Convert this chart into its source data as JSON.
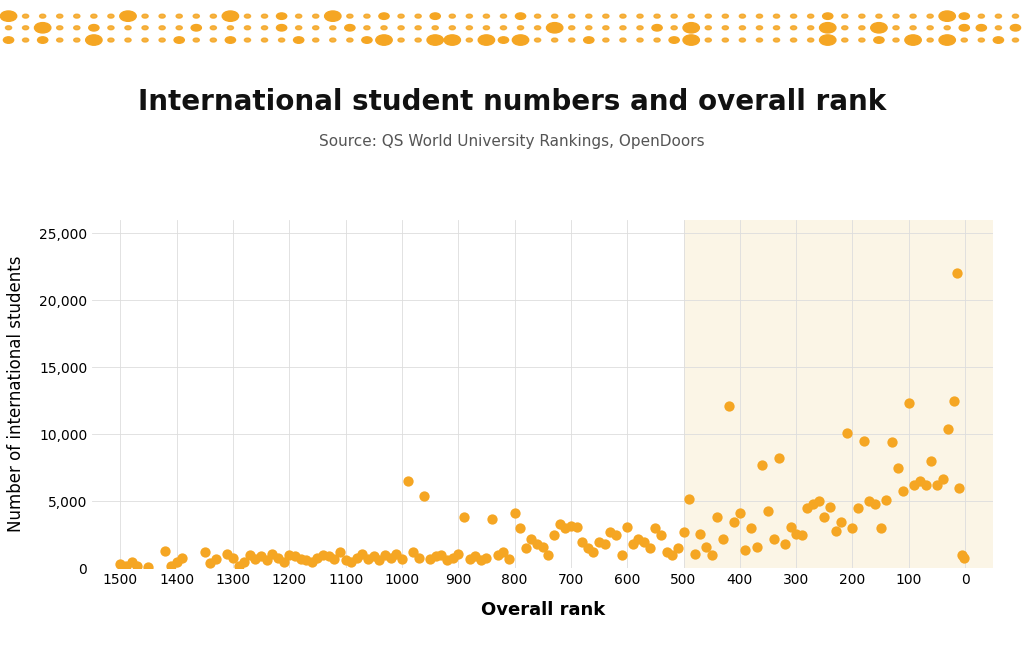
{
  "title": "International student numbers and overall rank",
  "subtitle": "Source: QS World University Rankings, OpenDoors",
  "xlabel": "Overall rank",
  "ylabel": "Number of international students",
  "dot_color": "#F5A623",
  "highlight_bg": "#FBF5E6",
  "highlight_x_start": 0,
  "highlight_x_end": 500,
  "xlim": [
    1550,
    -50
  ],
  "ylim": [
    0,
    26000
  ],
  "yticks": [
    0,
    5000,
    10000,
    15000,
    20000,
    25000
  ],
  "xticks": [
    1500,
    1400,
    1300,
    1200,
    1100,
    1000,
    900,
    800,
    700,
    600,
    500,
    400,
    300,
    200,
    100,
    0
  ],
  "scatter_data": [
    [
      1500,
      300
    ],
    [
      1490,
      150
    ],
    [
      1480,
      500
    ],
    [
      1470,
      200
    ],
    [
      1450,
      100
    ],
    [
      1420,
      1300
    ],
    [
      1410,
      200
    ],
    [
      1400,
      500
    ],
    [
      1390,
      800
    ],
    [
      1350,
      1200
    ],
    [
      1340,
      400
    ],
    [
      1330,
      700
    ],
    [
      1310,
      1100
    ],
    [
      1300,
      800
    ],
    [
      1290,
      200
    ],
    [
      1280,
      500
    ],
    [
      1270,
      1000
    ],
    [
      1260,
      700
    ],
    [
      1250,
      900
    ],
    [
      1240,
      600
    ],
    [
      1230,
      1100
    ],
    [
      1220,
      800
    ],
    [
      1210,
      500
    ],
    [
      1200,
      1000
    ],
    [
      1190,
      900
    ],
    [
      1180,
      700
    ],
    [
      1170,
      600
    ],
    [
      1160,
      500
    ],
    [
      1150,
      800
    ],
    [
      1140,
      1000
    ],
    [
      1130,
      900
    ],
    [
      1120,
      700
    ],
    [
      1110,
      1200
    ],
    [
      1100,
      600
    ],
    [
      1090,
      500
    ],
    [
      1080,
      800
    ],
    [
      1070,
      1100
    ],
    [
      1060,
      700
    ],
    [
      1050,
      900
    ],
    [
      1040,
      600
    ],
    [
      1030,
      1000
    ],
    [
      1020,
      800
    ],
    [
      1010,
      1100
    ],
    [
      1000,
      700
    ],
    [
      990,
      6500
    ],
    [
      980,
      1200
    ],
    [
      970,
      800
    ],
    [
      960,
      5400
    ],
    [
      950,
      700
    ],
    [
      940,
      900
    ],
    [
      930,
      1000
    ],
    [
      920,
      600
    ],
    [
      910,
      800
    ],
    [
      900,
      1100
    ],
    [
      890,
      3800
    ],
    [
      880,
      700
    ],
    [
      870,
      900
    ],
    [
      860,
      600
    ],
    [
      850,
      800
    ],
    [
      840,
      3700
    ],
    [
      830,
      1000
    ],
    [
      820,
      1200
    ],
    [
      810,
      700
    ],
    [
      800,
      4100
    ],
    [
      790,
      3000
    ],
    [
      780,
      1500
    ],
    [
      770,
      2200
    ],
    [
      760,
      1800
    ],
    [
      750,
      1600
    ],
    [
      740,
      1000
    ],
    [
      730,
      2500
    ],
    [
      720,
      3300
    ],
    [
      710,
      3000
    ],
    [
      700,
      3200
    ],
    [
      690,
      3100
    ],
    [
      680,
      2000
    ],
    [
      670,
      1500
    ],
    [
      660,
      1200
    ],
    [
      650,
      2000
    ],
    [
      640,
      1800
    ],
    [
      630,
      2700
    ],
    [
      620,
      2500
    ],
    [
      610,
      1000
    ],
    [
      600,
      3100
    ],
    [
      590,
      1800
    ],
    [
      580,
      2200
    ],
    [
      570,
      2000
    ],
    [
      560,
      1500
    ],
    [
      550,
      3000
    ],
    [
      540,
      2500
    ],
    [
      530,
      1200
    ],
    [
      520,
      1000
    ],
    [
      510,
      1500
    ],
    [
      500,
      2700
    ],
    [
      490,
      5200
    ],
    [
      480,
      1100
    ],
    [
      470,
      2600
    ],
    [
      460,
      1600
    ],
    [
      450,
      1000
    ],
    [
      440,
      3800
    ],
    [
      430,
      2200
    ],
    [
      420,
      12100
    ],
    [
      410,
      3500
    ],
    [
      400,
      4100
    ],
    [
      390,
      1400
    ],
    [
      380,
      3000
    ],
    [
      370,
      1600
    ],
    [
      360,
      7700
    ],
    [
      350,
      4300
    ],
    [
      340,
      2200
    ],
    [
      330,
      8200
    ],
    [
      320,
      1800
    ],
    [
      310,
      3100
    ],
    [
      300,
      2600
    ],
    [
      290,
      2500
    ],
    [
      280,
      4500
    ],
    [
      270,
      4800
    ],
    [
      260,
      5000
    ],
    [
      250,
      3800
    ],
    [
      240,
      4600
    ],
    [
      230,
      2800
    ],
    [
      220,
      3500
    ],
    [
      210,
      10100
    ],
    [
      200,
      3000
    ],
    [
      190,
      4500
    ],
    [
      180,
      9500
    ],
    [
      170,
      5000
    ],
    [
      160,
      4800
    ],
    [
      150,
      3000
    ],
    [
      140,
      5100
    ],
    [
      130,
      9400
    ],
    [
      120,
      7500
    ],
    [
      110,
      5800
    ],
    [
      100,
      12300
    ],
    [
      90,
      6200
    ],
    [
      80,
      6500
    ],
    [
      70,
      6200
    ],
    [
      60,
      8000
    ],
    [
      50,
      6200
    ],
    [
      40,
      6700
    ],
    [
      30,
      10400
    ],
    [
      20,
      12500
    ],
    [
      15,
      22000
    ],
    [
      10,
      6000
    ],
    [
      5,
      1000
    ],
    [
      2,
      800
    ]
  ],
  "background_color": "#ffffff",
  "grid_color": "#dddddd",
  "title_fontsize": 20,
  "subtitle_fontsize": 11,
  "axis_label_fontsize": 13,
  "tick_fontsize": 10
}
